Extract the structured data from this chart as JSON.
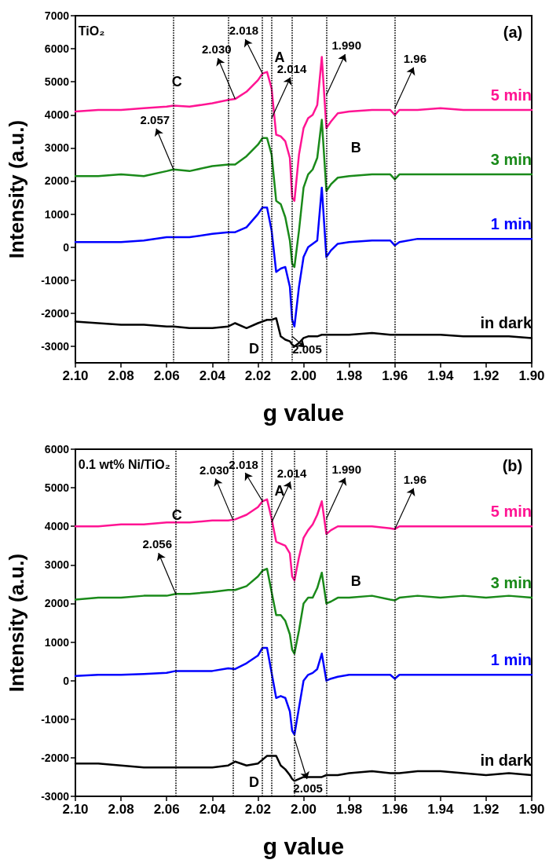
{
  "chart_data": [
    {
      "type": "line",
      "xlabel": "g value",
      "ylabel": "Intensity (a.u.)",
      "legend": false,
      "grid": false,
      "marker": "none",
      "line_style": "solid",
      "xlim": [
        2.1,
        1.9
      ],
      "xticks": [
        {
          "value": 2.1,
          "label": "2.10"
        },
        2.08,
        2.06,
        2.04,
        2.02,
        {
          "value": 2.0,
          "label": "2.00"
        },
        1.98,
        1.96,
        1.94,
        1.92,
        {
          "value": 1.9,
          "label": "1.90"
        }
      ],
      "ylim": [
        -3500,
        7000
      ],
      "yticks": [
        -3000,
        -2000,
        -1000,
        0,
        1000,
        2000,
        3000,
        4000,
        5000,
        6000,
        7000
      ],
      "x": [
        2.1,
        2.09,
        2.08,
        2.07,
        2.06,
        2.057,
        2.05,
        2.04,
        2.033,
        2.03,
        2.025,
        2.02,
        2.018,
        2.016,
        2.014,
        2.012,
        2.01,
        2.008,
        2.006,
        2.005,
        2.004,
        2.002,
        2.0,
        1.998,
        1.996,
        1.994,
        1.992,
        1.99,
        1.988,
        1.985,
        1.98,
        1.97,
        1.962,
        1.96,
        1.958,
        1.95,
        1.94,
        1.93,
        1.92,
        1.91,
        1.9
      ],
      "series": [
        {
          "name": "5 min",
          "color": "#ff1493",
          "values": [
            4100,
            4150,
            4150,
            4200,
            4250,
            4280,
            4250,
            4350,
            4450,
            4480,
            4700,
            5050,
            5250,
            5300,
            4800,
            3400,
            3350,
            3200,
            2700,
            1500,
            1400,
            2800,
            3600,
            3900,
            4000,
            4300,
            5750,
            3600,
            3800,
            4050,
            4100,
            4150,
            4150,
            4000,
            4150,
            4150,
            4200,
            4150,
            4150,
            4150,
            4150
          ]
        },
        {
          "name": "3 min",
          "color": "#1a8a1a",
          "values": [
            2150,
            2150,
            2200,
            2150,
            2300,
            2350,
            2300,
            2450,
            2500,
            2500,
            2750,
            3100,
            3300,
            3300,
            2800,
            1400,
            1300,
            900,
            200,
            -500,
            -600,
            500,
            1800,
            2200,
            2350,
            2700,
            3850,
            1700,
            1900,
            2100,
            2150,
            2200,
            2200,
            2050,
            2200,
            2200,
            2200,
            2200,
            2200,
            2200,
            2200
          ]
        },
        {
          "name": "1 min",
          "color": "#0000ff",
          "values": [
            150,
            150,
            150,
            200,
            300,
            300,
            300,
            400,
            450,
            450,
            600,
            1000,
            1200,
            1200,
            500,
            -750,
            -650,
            -600,
            -1200,
            -2200,
            -2400,
            -1200,
            -300,
            0,
            100,
            200,
            1800,
            -300,
            -100,
            100,
            150,
            200,
            200,
            50,
            150,
            250,
            250,
            250,
            250,
            250,
            250
          ]
        },
        {
          "name": "in dark",
          "color": "#000000",
          "values": [
            -2250,
            -2300,
            -2350,
            -2350,
            -2400,
            -2400,
            -2450,
            -2450,
            -2400,
            -2300,
            -2450,
            -2300,
            -2250,
            -2200,
            -2200,
            -2150,
            -2700,
            -2800,
            -2850,
            -2950,
            -3000,
            -2900,
            -2750,
            -2700,
            -2700,
            -2700,
            -2650,
            -2650,
            -2650,
            -2650,
            -2650,
            -2600,
            -2650,
            -2650,
            -2650,
            -2650,
            -2650,
            -2700,
            -2700,
            -2700,
            -2750
          ]
        }
      ],
      "ref_lines": [
        {
          "axis": "x",
          "value": 2.057,
          "color": "#000000",
          "line_style": "dotted"
        },
        {
          "axis": "x",
          "value": 2.033,
          "color": "#000000",
          "line_style": "dotted"
        },
        {
          "axis": "x",
          "value": 2.018,
          "color": "#000000",
          "line_style": "dotted"
        },
        {
          "axis": "x",
          "value": 2.014,
          "color": "#000000",
          "line_style": "dotted"
        },
        {
          "axis": "x",
          "value": 2.005,
          "color": "#000000",
          "line_style": "dotted"
        },
        {
          "axis": "x",
          "value": 1.99,
          "color": "#000000",
          "line_style": "dotted"
        },
        {
          "axis": "x",
          "value": 1.96,
          "color": "#000000",
          "line_style": "dotted"
        }
      ],
      "annotations": [
        "TiO₂",
        "(a)",
        "A",
        "B",
        "C",
        "D",
        {
          "text": "2.057",
          "x": 2.057,
          "y": 2350
        },
        {
          "text": "2.030",
          "x": 2.03,
          "y": 4480
        },
        {
          "text": "2.018",
          "x": 2.018,
          "y": 5250
        },
        {
          "text": "2.014",
          "x": 2.014,
          "y": 3900
        },
        {
          "text": "1.990",
          "x": 1.99,
          "y": 4600
        },
        {
          "text": "1.96",
          "x": 1.96,
          "y": 4200
        },
        {
          "text": "2.005",
          "x": 2.005,
          "y": -2700
        }
      ]
    },
    {
      "type": "line",
      "xlabel": "g value",
      "ylabel": "Intensity (a.u.)",
      "legend": false,
      "grid": false,
      "marker": "none",
      "line_style": "solid",
      "xlim": [
        2.1,
        1.9
      ],
      "xticks": [
        {
          "value": 2.1,
          "label": "2.10"
        },
        2.08,
        2.06,
        2.04,
        2.02,
        {
          "value": 2.0,
          "label": "2.00"
        },
        1.98,
        1.96,
        1.94,
        1.92,
        {
          "value": 1.9,
          "label": "1.90"
        }
      ],
      "ylim": [
        -3000,
        6000
      ],
      "yticks": [
        -3000,
        -2000,
        -1000,
        0,
        1000,
        2000,
        3000,
        4000,
        5000,
        6000
      ],
      "x": [
        2.1,
        2.09,
        2.08,
        2.07,
        2.06,
        2.056,
        2.05,
        2.04,
        2.033,
        2.03,
        2.025,
        2.02,
        2.018,
        2.016,
        2.014,
        2.012,
        2.01,
        2.008,
        2.006,
        2.005,
        2.004,
        2.002,
        2.0,
        1.998,
        1.996,
        1.994,
        1.992,
        1.99,
        1.988,
        1.985,
        1.98,
        1.97,
        1.962,
        1.96,
        1.958,
        1.95,
        1.94,
        1.93,
        1.92,
        1.91,
        1.9
      ],
      "series": [
        {
          "name": "5 min",
          "color": "#ff1493",
          "values": [
            4000,
            4000,
            4050,
            4050,
            4100,
            4100,
            4100,
            4150,
            4150,
            4180,
            4300,
            4500,
            4650,
            4700,
            4200,
            3600,
            3550,
            3500,
            3300,
            2700,
            2600,
            3200,
            3700,
            3900,
            4050,
            4300,
            4650,
            3800,
            3900,
            4000,
            4000,
            4000,
            3950,
            3930,
            4000,
            4000,
            4000,
            4000,
            4000,
            4000,
            4000
          ]
        },
        {
          "name": "3 min",
          "color": "#1a8a1a",
          "values": [
            2100,
            2150,
            2150,
            2200,
            2200,
            2250,
            2250,
            2300,
            2350,
            2350,
            2450,
            2700,
            2850,
            2900,
            2300,
            1700,
            1700,
            1550,
            1200,
            800,
            700,
            1300,
            2000,
            2150,
            2150,
            2400,
            2800,
            2000,
            2050,
            2150,
            2150,
            2200,
            2100,
            2080,
            2150,
            2200,
            2150,
            2200,
            2150,
            2200,
            2150
          ]
        },
        {
          "name": "1 min",
          "color": "#0000ff",
          "values": [
            120,
            150,
            150,
            170,
            200,
            250,
            250,
            250,
            320,
            300,
            450,
            650,
            850,
            850,
            200,
            -450,
            -400,
            -450,
            -800,
            -1300,
            -1400,
            -700,
            0,
            150,
            200,
            300,
            700,
            0,
            50,
            100,
            150,
            150,
            150,
            50,
            150,
            150,
            150,
            150,
            150,
            150,
            150
          ]
        },
        {
          "name": "in dark",
          "color": "#000000",
          "values": [
            -2150,
            -2150,
            -2200,
            -2250,
            -2250,
            -2250,
            -2250,
            -2250,
            -2200,
            -2100,
            -2200,
            -2150,
            -2050,
            -1950,
            -1950,
            -1950,
            -2200,
            -2300,
            -2450,
            -2550,
            -2600,
            -2550,
            -2500,
            -2500,
            -2500,
            -2500,
            -2500,
            -2450,
            -2450,
            -2450,
            -2400,
            -2350,
            -2400,
            -2400,
            -2400,
            -2350,
            -2350,
            -2400,
            -2450,
            -2400,
            -2450
          ]
        }
      ],
      "ref_lines": [
        {
          "axis": "x",
          "value": 2.056,
          "color": "#000000",
          "line_style": "dotted"
        },
        {
          "axis": "x",
          "value": 2.031,
          "color": "#000000",
          "line_style": "dotted"
        },
        {
          "axis": "x",
          "value": 2.018,
          "color": "#000000",
          "line_style": "dotted"
        },
        {
          "axis": "x",
          "value": 2.014,
          "color": "#000000",
          "line_style": "dotted"
        },
        {
          "axis": "x",
          "value": 2.004,
          "color": "#000000",
          "line_style": "dotted"
        },
        {
          "axis": "x",
          "value": 1.99,
          "color": "#000000",
          "line_style": "dotted"
        },
        {
          "axis": "x",
          "value": 1.96,
          "color": "#000000",
          "line_style": "dotted"
        }
      ],
      "annotations": [
        "0.1 wt% Ni/TiO₂",
        "(b)",
        "A",
        "B",
        "C",
        "D",
        {
          "text": "2.056",
          "x": 2.056,
          "y": 2250
        },
        {
          "text": "2.030",
          "x": 2.031,
          "y": 4180
        },
        {
          "text": "2.018",
          "x": 2.018,
          "y": 4650
        },
        {
          "text": "2.014",
          "x": 2.014,
          "y": 4100
        },
        {
          "text": "1.990",
          "x": 1.99,
          "y": 4200
        },
        {
          "text": "1.96",
          "x": 1.96,
          "y": 3930
        },
        {
          "text": "2.005",
          "x": 2.004,
          "y": -1500
        }
      ]
    }
  ]
}
